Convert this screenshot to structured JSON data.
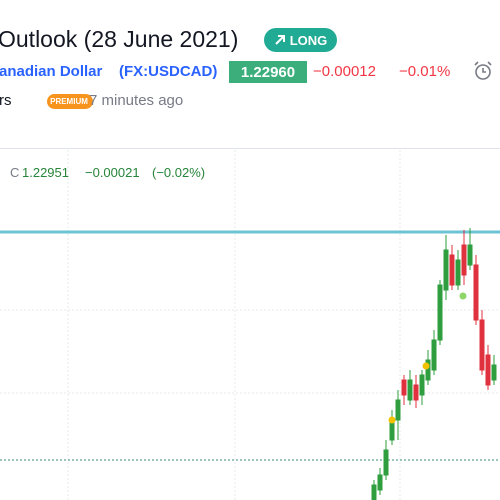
{
  "header": {
    "title": "Outlook (28 June 2021)",
    "badge": "LONG"
  },
  "symbol": {
    "name": "anadian Dollar",
    "ticker": "(FX:USDCAD)",
    "price": "1.22960",
    "change": "−0.00012",
    "change_pct": "−0.01%"
  },
  "author": {
    "suffix": "rs",
    "badge": "PREMIUM",
    "time": "7 minutes ago"
  },
  "chart": {
    "legend": {
      "label": "C",
      "close": "1.22951",
      "change": "−0.00021",
      "change_pct": "(−0.02%)"
    }
  }
}
